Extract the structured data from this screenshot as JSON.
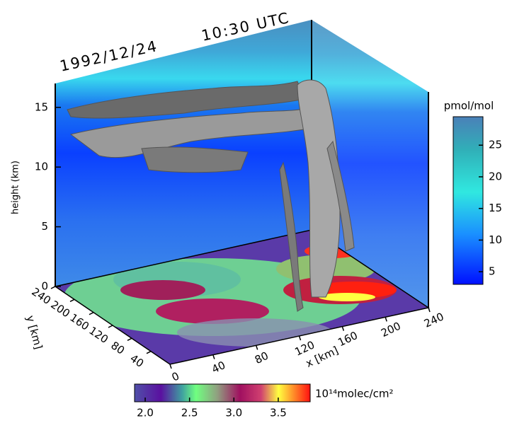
{
  "date": "1992/12/24",
  "time": "10:30 UTC",
  "axes": {
    "height": {
      "label": "height (km)",
      "lim": [
        0,
        17
      ],
      "ticks": [
        0,
        5,
        10,
        15
      ]
    },
    "y": {
      "label": "y [km]",
      "lim": [
        0,
        240
      ],
      "ticks": [
        40,
        80,
        120,
        160,
        200,
        240
      ]
    },
    "x": {
      "label": "x [km]",
      "lim": [
        0,
        240
      ],
      "ticks": [
        0,
        40,
        80,
        120,
        160,
        200,
        240
      ]
    }
  },
  "colorbar_mixing_ratio": {
    "unit": "pmol/mol",
    "lim": [
      3,
      29.5
    ],
    "ticks": [
      5,
      10,
      15,
      20,
      25
    ]
  },
  "colorbar_column": {
    "unit": "10¹⁴molec/cm²",
    "lim": [
      1.88,
      3.86
    ],
    "ticks": [
      {
        "value": 2.0,
        "label": "2.0"
      },
      {
        "value": 2.5,
        "label": "2.5"
      },
      {
        "value": 3.0,
        "label": "3.0"
      },
      {
        "value": 3.5,
        "label": "3.5"
      }
    ]
  }
}
